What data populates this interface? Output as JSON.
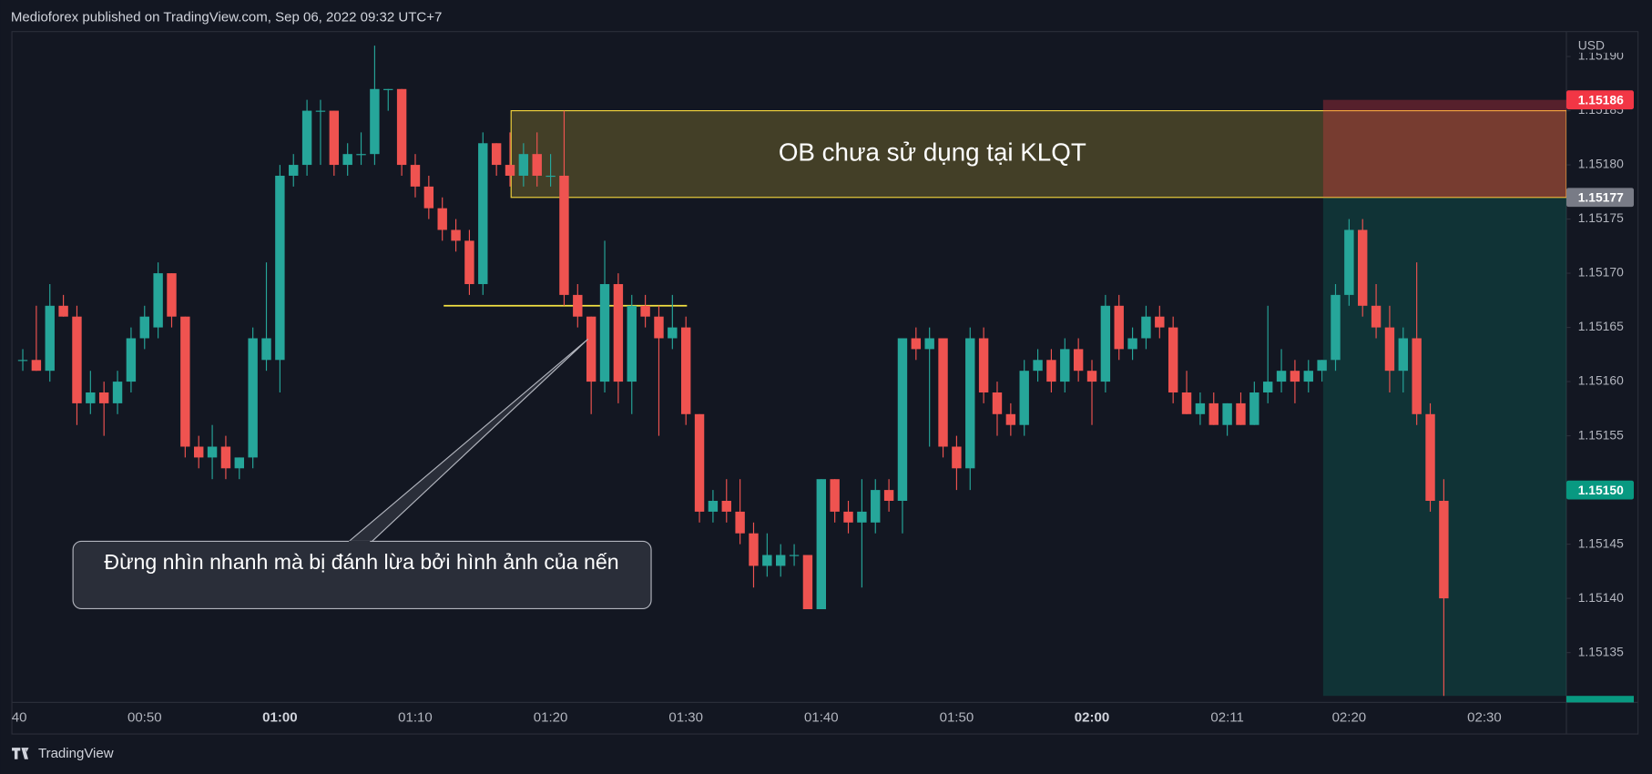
{
  "header": "Medioforex published on TradingView.com, Sep 06, 2022 09:32 UTC+7",
  "footer": "TradingView",
  "chart_data": {
    "type": "candlestick",
    "currency": "USD",
    "up_color": "#26a69a",
    "down_color": "#ef5350",
    "grid": false,
    "ylim": [
      1.151304,
      1.151923
    ],
    "yticks": [
      {
        "value": 1.15135,
        "label": "1.15135"
      },
      {
        "value": 1.1514,
        "label": "1.15140"
      },
      {
        "value": 1.15145,
        "label": "1.15145"
      },
      {
        "value": 1.1515,
        "label": "1.15150"
      },
      {
        "value": 1.15155,
        "label": "1.15155"
      },
      {
        "value": 1.1516,
        "label": "1.15160"
      },
      {
        "value": 1.15165,
        "label": "1.15165"
      },
      {
        "value": 1.1517,
        "label": "1.15170"
      },
      {
        "value": 1.15175,
        "label": "1.15175"
      },
      {
        "value": 1.1518,
        "label": "1.15180"
      },
      {
        "value": 1.15185,
        "label": "1.15185"
      },
      {
        "value": 1.1519,
        "label": "1.15190"
      }
    ],
    "categories": [
      "40",
      null,
      null,
      null,
      null,
      null,
      null,
      null,
      null,
      null,
      "00:50",
      null,
      null,
      null,
      null,
      null,
      null,
      null,
      null,
      null,
      "01:00",
      null,
      null,
      null,
      null,
      null,
      null,
      null,
      null,
      null,
      "01:10",
      null,
      null,
      null,
      null,
      null,
      null,
      null,
      null,
      null,
      "01:20",
      null,
      null,
      null,
      null,
      null,
      null,
      null,
      null,
      null,
      "01:30",
      null,
      null,
      null,
      null,
      null,
      null,
      null,
      null,
      null,
      "01:40",
      null,
      null,
      null,
      null,
      null,
      null,
      null,
      null,
      null,
      "01:50",
      null,
      null,
      null,
      null,
      null,
      null,
      null,
      null,
      null,
      "02:00",
      null,
      null,
      null,
      null,
      null,
      null,
      null,
      null,
      null,
      "02:11",
      null,
      null,
      null,
      null,
      null,
      null,
      null,
      null,
      "02:20",
      null,
      null,
      null,
      null,
      null,
      null,
      null,
      null,
      null,
      "02:30"
    ],
    "ohlc": [
      null,
      [
        1.15162,
        1.15163,
        1.15161,
        1.15162
      ],
      [
        1.15162,
        1.15167,
        1.15161,
        1.15161
      ],
      [
        1.15161,
        1.15169,
        1.1516,
        1.15167
      ],
      [
        1.15167,
        1.15168,
        1.15166,
        1.15166
      ],
      [
        1.15166,
        1.15167,
        1.15156,
        1.15158
      ],
      [
        1.15158,
        1.15161,
        1.15157,
        1.15159
      ],
      [
        1.15159,
        1.1516,
        1.15155,
        1.15158
      ],
      [
        1.15158,
        1.15161,
        1.15157,
        1.1516
      ],
      [
        1.1516,
        1.15165,
        1.15159,
        1.15164
      ],
      [
        1.15164,
        1.15167,
        1.15163,
        1.15166
      ],
      [
        1.15165,
        1.15171,
        1.15164,
        1.1517
      ],
      [
        1.1517,
        1.1517,
        1.15165,
        1.15166
      ],
      [
        1.15166,
        1.15166,
        1.15153,
        1.15154
      ],
      [
        1.15154,
        1.15155,
        1.15152,
        1.15153
      ],
      [
        1.15153,
        1.15156,
        1.15151,
        1.15154
      ],
      [
        1.15154,
        1.15155,
        1.15151,
        1.15152
      ],
      [
        1.15152,
        1.15153,
        1.15151,
        1.15153
      ],
      [
        1.15153,
        1.15165,
        1.15152,
        1.15164
      ],
      [
        1.15162,
        1.15171,
        1.15161,
        1.15164
      ],
      [
        1.15162,
        1.1518,
        1.15159,
        1.15179
      ],
      [
        1.15179,
        1.15181,
        1.15178,
        1.1518
      ],
      [
        1.1518,
        1.15186,
        1.15179,
        1.15185
      ],
      [
        1.15185,
        1.15186,
        1.1518,
        1.15185
      ],
      [
        1.15185,
        1.15185,
        1.15179,
        1.1518
      ],
      [
        1.1518,
        1.15182,
        1.15179,
        1.15181
      ],
      [
        1.15181,
        1.15183,
        1.1518,
        1.15181
      ],
      [
        1.15181,
        1.15191,
        1.1518,
        1.15187
      ],
      [
        1.15187,
        1.15187,
        1.15185,
        1.15187
      ],
      [
        1.15187,
        1.15187,
        1.15179,
        1.1518
      ],
      [
        1.1518,
        1.15181,
        1.15177,
        1.15178
      ],
      [
        1.15178,
        1.15179,
        1.15175,
        1.15176
      ],
      [
        1.15176,
        1.15177,
        1.15173,
        1.15174
      ],
      [
        1.15174,
        1.15175,
        1.15172,
        1.15173
      ],
      [
        1.15173,
        1.15174,
        1.15168,
        1.15169
      ],
      [
        1.15169,
        1.15183,
        1.15168,
        1.15182
      ],
      [
        1.15182,
        1.15182,
        1.15179,
        1.1518
      ],
      [
        1.1518,
        1.15183,
        1.15178,
        1.15179
      ],
      [
        1.15179,
        1.15182,
        1.15178,
        1.15181
      ],
      [
        1.15181,
        1.15183,
        1.15178,
        1.15179
      ],
      [
        1.15179,
        1.15181,
        1.15178,
        1.15179
      ],
      [
        1.15179,
        1.15185,
        1.15167,
        1.15168
      ],
      [
        1.15168,
        1.15169,
        1.15165,
        1.15166
      ],
      [
        1.15166,
        1.15166,
        1.15157,
        1.1516
      ],
      [
        1.1516,
        1.15173,
        1.15159,
        1.15169
      ],
      [
        1.15169,
        1.1517,
        1.15158,
        1.1516
      ],
      [
        1.1516,
        1.15168,
        1.15157,
        1.15167
      ],
      [
        1.15167,
        1.15168,
        1.15165,
        1.15166
      ],
      [
        1.15166,
        1.15167,
        1.15155,
        1.15164
      ],
      [
        1.15164,
        1.15168,
        1.15163,
        1.15165
      ],
      [
        1.15165,
        1.15166,
        1.15156,
        1.15157
      ],
      [
        1.15157,
        1.15157,
        1.15147,
        1.15148
      ],
      [
        1.15148,
        1.1515,
        1.15147,
        1.15149
      ],
      [
        1.15149,
        1.15151,
        1.15147,
        1.15148
      ],
      [
        1.15148,
        1.15151,
        1.15145,
        1.15146
      ],
      [
        1.15146,
        1.15147,
        1.15141,
        1.15143
      ],
      [
        1.15143,
        1.15146,
        1.15142,
        1.15144
      ],
      [
        1.15143,
        1.15145,
        1.15142,
        1.15144
      ],
      [
        1.15144,
        1.15145,
        1.15143,
        1.15144
      ],
      [
        1.15144,
        1.15144,
        1.15139,
        1.15139
      ],
      [
        1.15139,
        1.15151,
        1.15139,
        1.15151
      ],
      [
        1.15151,
        1.15151,
        1.15147,
        1.15148
      ],
      [
        1.15148,
        1.15149,
        1.15146,
        1.15147
      ],
      [
        1.15147,
        1.15151,
        1.15141,
        1.15148
      ],
      [
        1.15147,
        1.15151,
        1.15146,
        1.1515
      ],
      [
        1.1515,
        1.15151,
        1.15148,
        1.15149
      ],
      [
        1.15149,
        1.15164,
        1.15146,
        1.15164
      ],
      [
        1.15164,
        1.15165,
        1.15162,
        1.15163
      ],
      [
        1.15163,
        1.15165,
        1.15154,
        1.15164
      ],
      [
        1.15164,
        1.15164,
        1.15153,
        1.15154
      ],
      [
        1.15154,
        1.15155,
        1.1515,
        1.15152
      ],
      [
        1.15152,
        1.15165,
        1.1515,
        1.15164
      ],
      [
        1.15164,
        1.15165,
        1.15158,
        1.15159
      ],
      [
        1.15159,
        1.1516,
        1.15155,
        1.15157
      ],
      [
        1.15157,
        1.15158,
        1.15155,
        1.15156
      ],
      [
        1.15156,
        1.15162,
        1.15155,
        1.15161
      ],
      [
        1.15161,
        1.15163,
        1.1516,
        1.15162
      ],
      [
        1.15162,
        1.15163,
        1.15159,
        1.1516
      ],
      [
        1.1516,
        1.15164,
        1.15159,
        1.15163
      ],
      [
        1.15163,
        1.15164,
        1.1516,
        1.15161
      ],
      [
        1.15161,
        1.15162,
        1.15156,
        1.1516
      ],
      [
        1.1516,
        1.15168,
        1.15159,
        1.15167
      ],
      [
        1.15167,
        1.15168,
        1.15162,
        1.15163
      ],
      [
        1.15163,
        1.15165,
        1.15162,
        1.15164
      ],
      [
        1.15164,
        1.15167,
        1.15163,
        1.15166
      ],
      [
        1.15166,
        1.15167,
        1.15164,
        1.15165
      ],
      [
        1.15165,
        1.15166,
        1.15158,
        1.15159
      ],
      [
        1.15159,
        1.15161,
        1.15157,
        1.15157
      ],
      [
        1.15157,
        1.15159,
        1.15156,
        1.15158
      ],
      [
        1.15158,
        1.15159,
        1.15156,
        1.15156
      ],
      [
        1.15156,
        1.15158,
        1.15155,
        1.15158
      ],
      [
        1.15158,
        1.15159,
        1.15156,
        1.15156
      ],
      [
        1.15156,
        1.1516,
        1.15156,
        1.15159
      ],
      [
        1.15159,
        1.15167,
        1.15158,
        1.1516
      ],
      [
        1.1516,
        1.15163,
        1.15159,
        1.15161
      ],
      [
        1.15161,
        1.15162,
        1.15158,
        1.1516
      ],
      [
        1.1516,
        1.15162,
        1.15159,
        1.15161
      ],
      [
        1.15161,
        1.15162,
        1.1516,
        1.15162
      ],
      [
        1.15162,
        1.15169,
        1.15161,
        1.15168
      ],
      [
        1.15168,
        1.15175,
        1.15167,
        1.15174
      ],
      [
        1.15174,
        1.15175,
        1.15166,
        1.15167
      ],
      [
        1.15167,
        1.15169,
        1.15164,
        1.15165
      ],
      [
        1.15165,
        1.15167,
        1.15159,
        1.15161
      ],
      [
        1.15161,
        1.15165,
        1.15159,
        1.15164
      ],
      [
        1.15164,
        1.15171,
        1.15156,
        1.15157
      ],
      [
        1.15157,
        1.15158,
        1.15148,
        1.15149
      ],
      [
        1.15149,
        1.15151,
        1.15131,
        1.1514
      ],
      null,
      null,
      null
    ],
    "ob_zone": {
      "text": "OB chưa sử dụng tại KLQT",
      "top": 1.15185,
      "bottom": 1.15177,
      "color": "#f2d33c"
    },
    "level_line": {
      "value": 1.15167,
      "color": "#f5e342"
    },
    "position": {
      "stop": 1.15186,
      "entry": 1.15177,
      "target": 1.15131
    },
    "callout": "Đừng nhìn nhanh mà bị đánh lừa bởi hình ảnh của nến",
    "price_tags": [
      {
        "value": 1.15186,
        "color": "#f23645"
      },
      {
        "value": 1.15177,
        "color": "#787b86"
      },
      {
        "value": 1.1515,
        "label": "1.15150",
        "color": "#089981"
      }
    ]
  }
}
